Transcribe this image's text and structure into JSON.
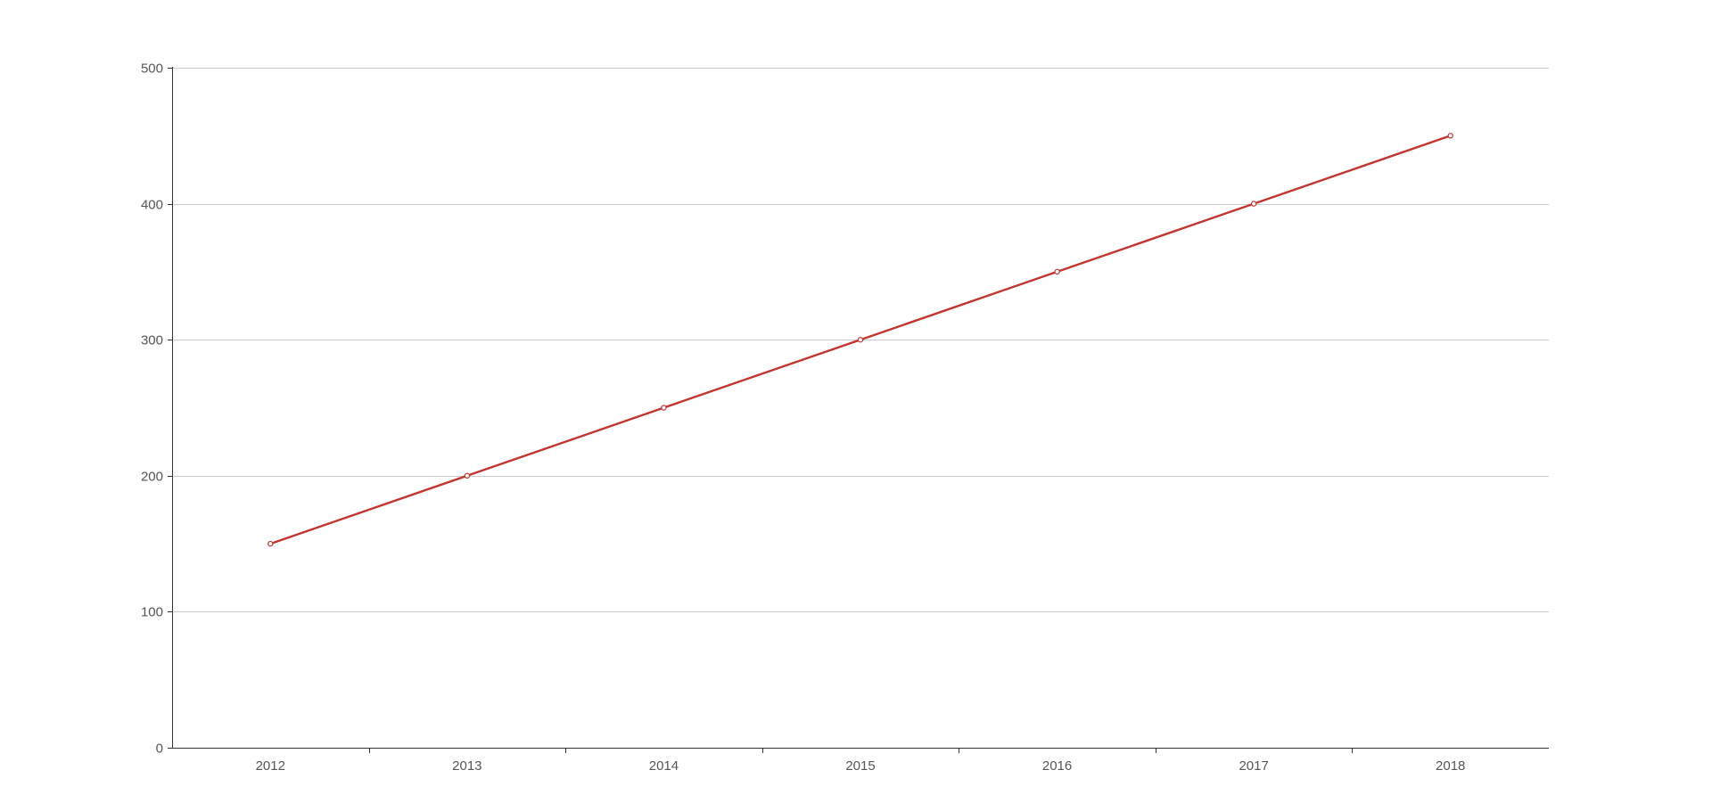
{
  "chart_data": {
    "type": "line",
    "categories": [
      "2012",
      "2013",
      "2014",
      "2015",
      "2016",
      "2017",
      "2018"
    ],
    "series": [
      {
        "values": [
          150,
          200,
          250,
          300,
          350,
          400,
          450
        ]
      }
    ],
    "ylim": [
      0,
      500
    ],
    "yticks": [
      "0",
      "100",
      "200",
      "300",
      "400",
      "500"
    ],
    "title": "",
    "xlabel": "",
    "ylabel": "",
    "grid": "horizontal",
    "legend": "none",
    "colors": {
      "series": "#c23531",
      "axis": "#333333",
      "grid": "#cccccc",
      "label": "#555555"
    }
  }
}
